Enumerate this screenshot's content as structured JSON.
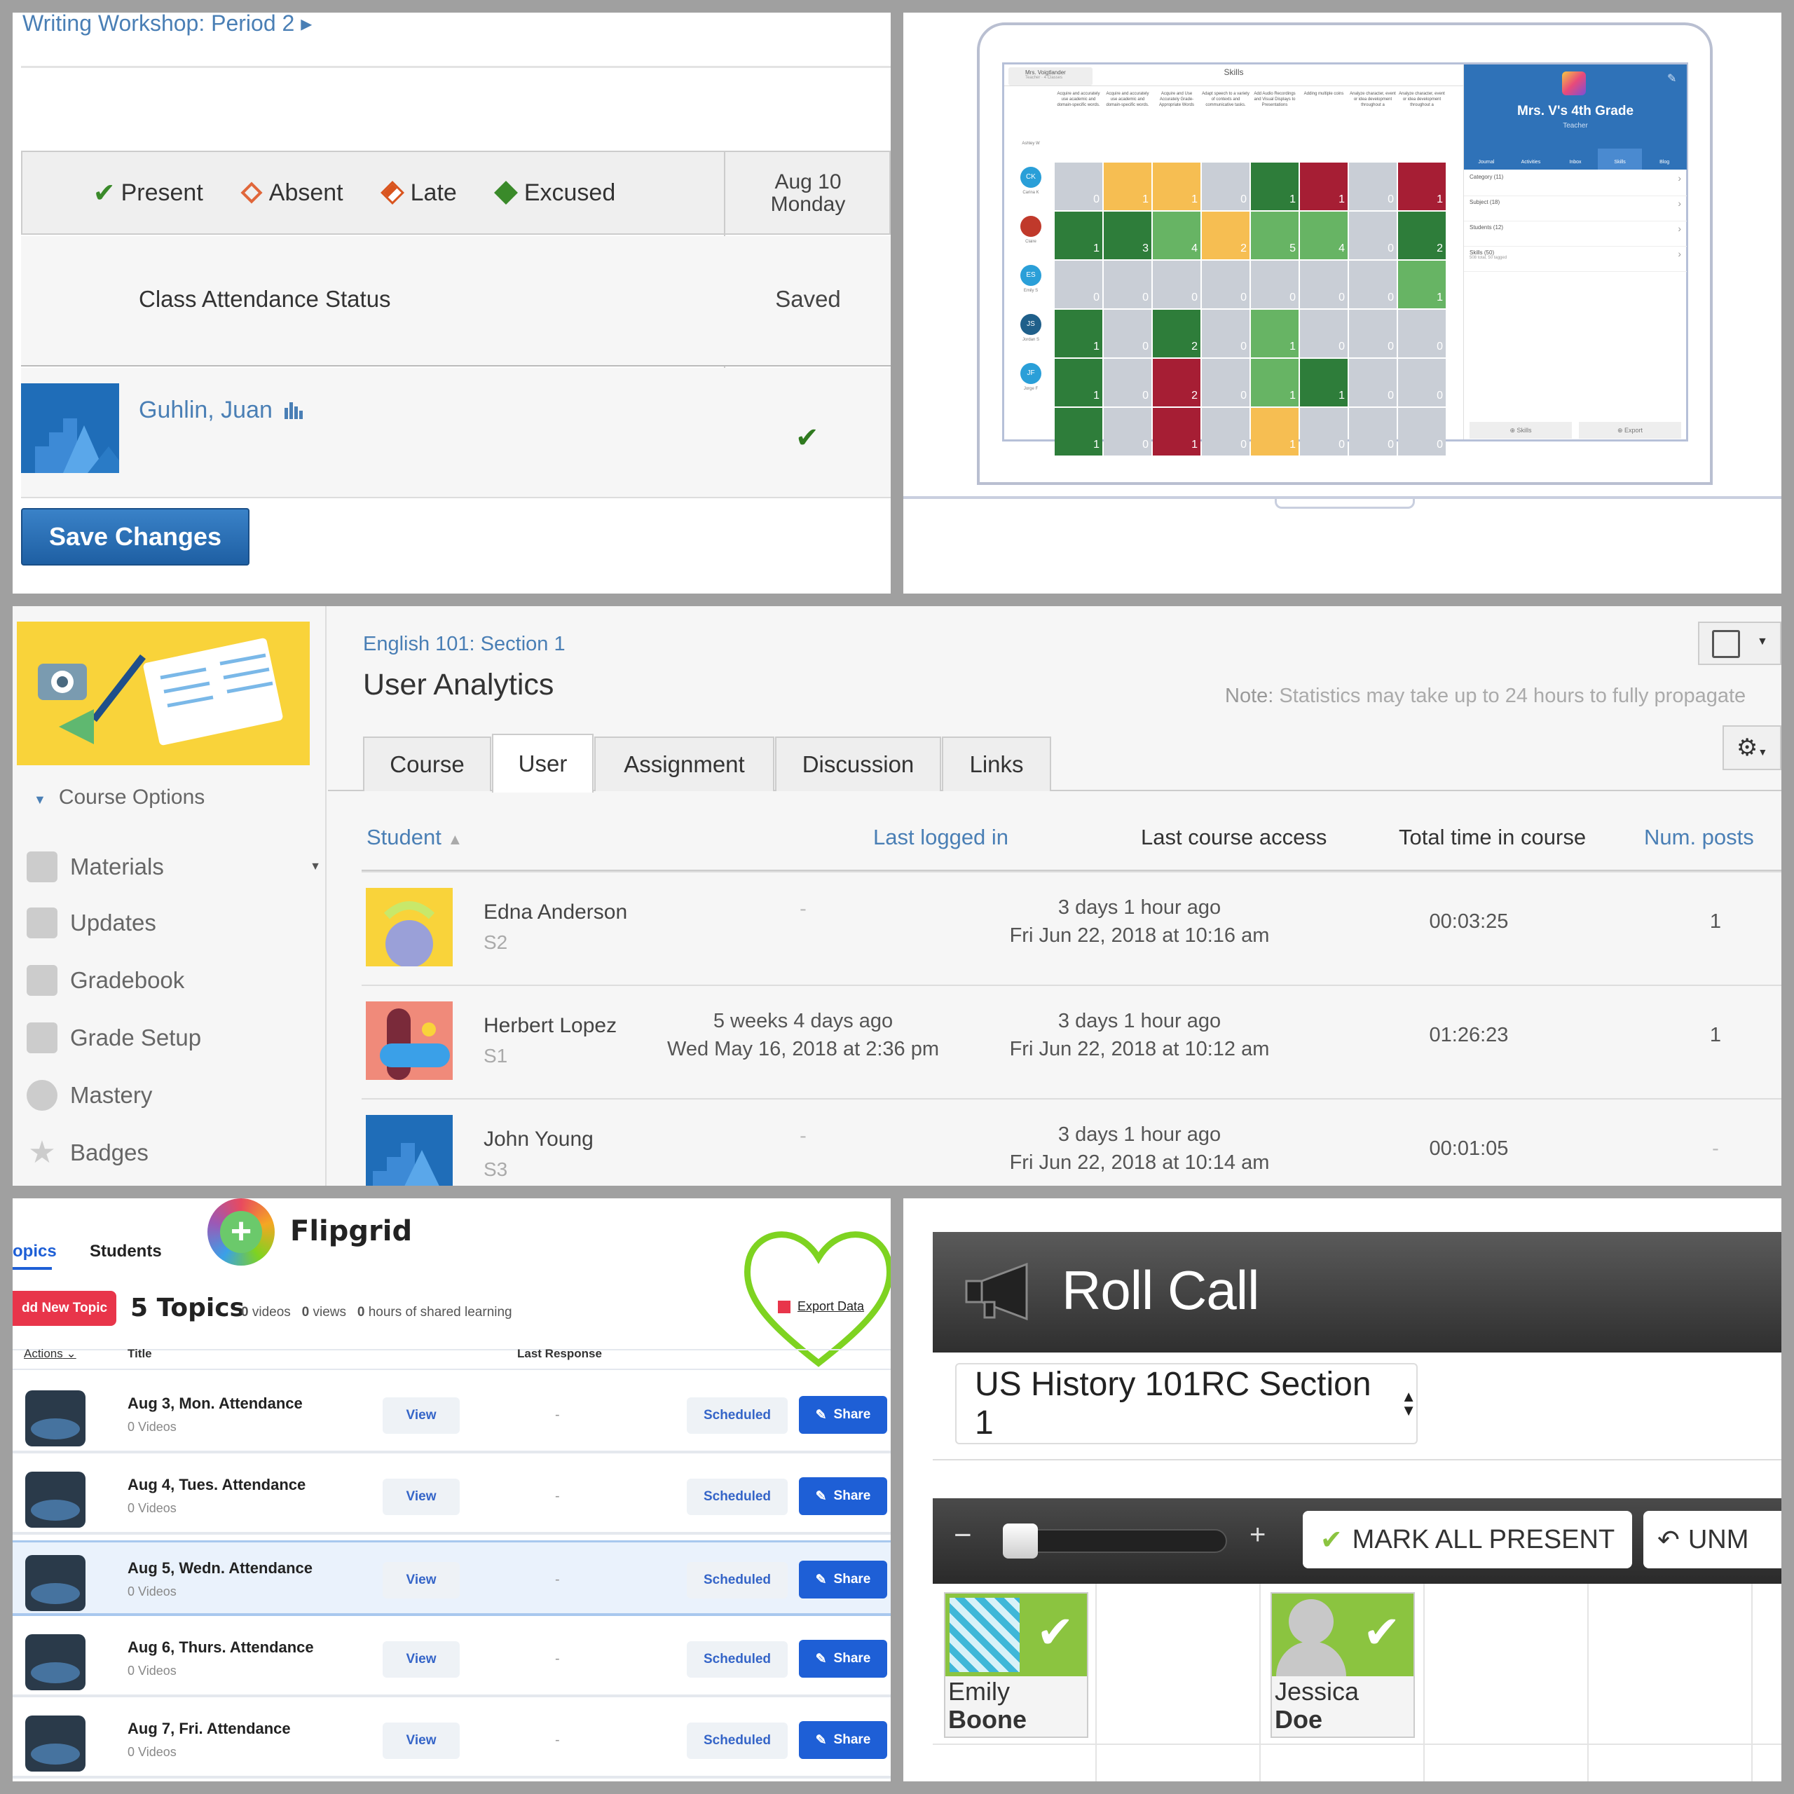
{
  "attendance": {
    "breadcrumb": "Writing Workshop: Period 2 ▸",
    "legend": [
      "Present",
      "Absent",
      "Late",
      "Excused"
    ],
    "date_line1": "Aug 10",
    "date_line2": "Monday",
    "status_label": "Class Attendance Status",
    "status_value": "Saved",
    "student_name": "Guhlin, Juan",
    "save_button": "Save Changes",
    "colors": {
      "present": "#3a8a2a",
      "absent": "#e0663a",
      "late": "#d9541e",
      "excused": "#3a8a2a",
      "link": "#4a7fb5"
    }
  },
  "skills_app": {
    "teacher_name": "Mrs. Voigtlander",
    "teacher_sub": "Teacher · 4 Classes",
    "skills_title": "Skills",
    "skill_headers": [
      "Acquire and accurately use academic and domain-specific words.",
      "Acquire and accurately use academic and domain-specific words.",
      "Acquire and Use Accurately Grade-Appropriate Words",
      "Adapt speech to a variety of contexts and communicative tasks.",
      "Add Audio Recordings and Visual Displays to Presentations",
      "Adding multiple coins",
      "Analyze character, event or idea development throughout a",
      "Analyze character, event or idea development throughout a"
    ],
    "students": [
      {
        "initials": "",
        "name": "Ashley W",
        "av": "#ffffff",
        "scores": [
          "0",
          "1",
          "1",
          "0",
          "1",
          "1",
          "0",
          "1"
        ],
        "colors": [
          "gr",
          "y",
          "y",
          "gr",
          "g",
          "r",
          "gr",
          "r"
        ]
      },
      {
        "initials": "CK",
        "name": "Carina K",
        "av": "#2a9fd8",
        "scores": [
          "1",
          "3",
          "4",
          "2",
          "5",
          "4",
          "0",
          "2"
        ],
        "colors": [
          "g",
          "g",
          "lg",
          "y",
          "lg",
          "lg",
          "gr",
          "g"
        ]
      },
      {
        "initials": "",
        "name": "Claire",
        "av": "#c0392b",
        "scores": [
          "0",
          "0",
          "0",
          "0",
          "0",
          "0",
          "0",
          "1"
        ],
        "colors": [
          "gr",
          "gr",
          "gr",
          "gr",
          "gr",
          "gr",
          "gr",
          "lg"
        ]
      },
      {
        "initials": "ES",
        "name": "Emily S",
        "av": "#2a9fd8",
        "scores": [
          "1",
          "0",
          "2",
          "0",
          "1",
          "0",
          "0",
          "0"
        ],
        "colors": [
          "g",
          "gr",
          "g",
          "gr",
          "lg",
          "gr",
          "gr",
          "gr"
        ]
      },
      {
        "initials": "JS",
        "name": "Jordan S",
        "av": "#1f5f8a",
        "scores": [
          "1",
          "0",
          "2",
          "0",
          "1",
          "1",
          "0",
          "0"
        ],
        "colors": [
          "g",
          "gr",
          "r",
          "gr",
          "lg",
          "g",
          "gr",
          "gr"
        ]
      },
      {
        "initials": "JF",
        "name": "Jorge F",
        "av": "#2a9fd8",
        "scores": [
          "1",
          "0",
          "1",
          "0",
          "1",
          "0",
          "0",
          "0"
        ],
        "colors": [
          "g",
          "gr",
          "r",
          "gr",
          "y",
          "gr",
          "gr",
          "gr"
        ]
      }
    ],
    "class_title": "Mrs. V's 4th Grade",
    "class_sub": "Teacher",
    "nav": [
      "Journal",
      "Activities",
      "Inbox",
      "Skills",
      "Blog"
    ],
    "menu": [
      {
        "label": "Category (11)",
        "sub": ""
      },
      {
        "label": "Subject (18)",
        "sub": ""
      },
      {
        "label": "Students (12)",
        "sub": ""
      },
      {
        "label": "Skills (50)",
        "sub": "508 total, 50 tagged"
      }
    ],
    "footer": [
      "⊕ Skills",
      "⊕ Export"
    ],
    "colors": {
      "blue": "#2f72b8"
    }
  },
  "analytics": {
    "sidebar": {
      "course_options": "Course Options",
      "items": [
        "Materials",
        "Updates",
        "Gradebook",
        "Grade Setup",
        "Mastery",
        "Badges"
      ]
    },
    "course": "English 101: Section 1",
    "title": "User Analytics",
    "note_label": "Note:",
    "note": "Statistics may take up to 24 hours to fully propagate",
    "tabs": [
      "Course",
      "User",
      "Assignment",
      "Discussion",
      "Links"
    ],
    "columns": [
      "Student",
      "Last logged in",
      "Last course access",
      "Total time in course",
      "Num. posts"
    ],
    "rows": [
      {
        "name": "Edna Anderson",
        "section": "S2",
        "logged1": "-",
        "logged2": "",
        "access1": "3 days 1 hour ago",
        "access2": "Fri Jun 22, 2018 at 10:16 am",
        "time": "00:03:25",
        "posts": "1"
      },
      {
        "name": "Herbert Lopez",
        "section": "S1",
        "logged1": "5 weeks 4 days ago",
        "logged2": "Wed May 16, 2018 at 2:36 pm",
        "access1": "3 days 1 hour ago",
        "access2": "Fri Jun 22, 2018 at 10:12 am",
        "time": "01:26:23",
        "posts": "1"
      },
      {
        "name": "John Young",
        "section": "S3",
        "logged1": "-",
        "logged2": "",
        "access1": "3 days 1 hour ago",
        "access2": "Fri Jun 22, 2018 at 10:14 am",
        "time": "00:01:05",
        "posts": "-"
      }
    ]
  },
  "flipgrid": {
    "tabs": [
      "opics",
      "Students"
    ],
    "brand": "Flipgrid",
    "add_topic": "dd New Topic",
    "topics_count": "5 Topics",
    "stats": [
      {
        "n": "0",
        "l": "videos"
      },
      {
        "n": "0",
        "l": "views"
      },
      {
        "n": "0",
        "l": "hours of shared learning"
      }
    ],
    "export": "Export Data",
    "col_actions": "Actions",
    "col_title": "Title",
    "col_last": "Last Response",
    "rows": [
      {
        "title": "Aug 3, Mon. Attendance",
        "videos": "0 Videos"
      },
      {
        "title": "Aug 4, Tues. Attendance",
        "videos": "0 Videos"
      },
      {
        "title": "Aug 5, Wedn. Attendance",
        "videos": "0 Videos"
      },
      {
        "title": "Aug 6, Thurs. Attendance",
        "videos": "0 Videos"
      },
      {
        "title": "Aug 7, Fri. Attendance",
        "videos": "0 Videos"
      }
    ],
    "view": "View",
    "dash": "-",
    "scheduled": "Scheduled",
    "share": "Share",
    "colors": {
      "red": "#e8354a",
      "blue": "#1e5fd6",
      "heart": "#7ed321"
    }
  },
  "rollcall": {
    "title": "Roll Call",
    "section": "US History 101RC Section 1",
    "minus": "−",
    "plus": "+",
    "mark_all": "MARK ALL PRESENT",
    "unmark": "UNM",
    "students": [
      {
        "first": "Emily",
        "last": "Boone"
      },
      {
        "first": "Jessica",
        "last": "Doe"
      }
    ],
    "colors": {
      "green": "#8bc440"
    }
  }
}
